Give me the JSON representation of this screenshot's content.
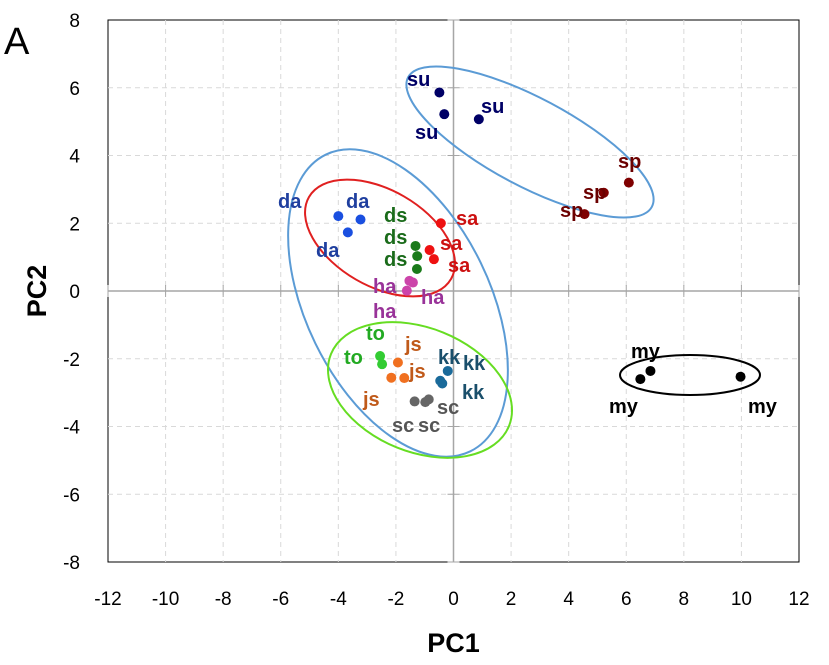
{
  "chart_data": {
    "type": "scatter",
    "panel_label": "A",
    "xlabel": "PC1",
    "ylabel": "PC2",
    "xlim": [
      -12,
      12
    ],
    "ylim": [
      -8,
      8
    ],
    "xticks": [
      "-12",
      "-10",
      "-8",
      "-6",
      "-4",
      "-2",
      "0",
      "2",
      "4",
      "6",
      "8",
      "10",
      "12"
    ],
    "yticks": [
      "8",
      "6",
      "4",
      "2",
      "0",
      "-2",
      "-4",
      "-6",
      "-8"
    ],
    "grid": true,
    "series": [
      {
        "name": "su",
        "color": "#000066",
        "label_color": "#000066",
        "points": [
          [
            -0.49,
            5.86
          ],
          [
            -0.32,
            5.22
          ],
          [
            0.88,
            5.07
          ]
        ]
      },
      {
        "name": "sp",
        "color": "#7f0000",
        "label_color": "#6b0000",
        "points": [
          [
            6.09,
            3.2
          ],
          [
            4.55,
            2.27
          ],
          [
            5.22,
            2.9
          ]
        ]
      },
      {
        "name": "da",
        "color": "#1a4fe0",
        "label_color": "#1f3f9f",
        "points": [
          [
            -4.0,
            2.21
          ],
          [
            -3.23,
            2.11
          ],
          [
            -3.67,
            1.73
          ]
        ]
      },
      {
        "name": "ds",
        "color": "#1a7a1a",
        "label_color": "#1a6b1a",
        "points": [
          [
            -1.32,
            1.33
          ],
          [
            -1.26,
            1.03
          ],
          [
            -1.27,
            0.65
          ]
        ]
      },
      {
        "name": "sa",
        "color": "#ee1111",
        "label_color": "#cc1111",
        "points": [
          [
            -0.44,
            2.0
          ],
          [
            -0.83,
            1.21
          ],
          [
            -0.68,
            0.94
          ]
        ]
      },
      {
        "name": "ha",
        "color": "#cc44aa",
        "label_color": "#993399",
        "points": [
          [
            -1.53,
            0.3
          ],
          [
            -1.41,
            0.25
          ],
          [
            -1.62,
            0.01
          ]
        ]
      },
      {
        "name": "to",
        "color": "#33cc33",
        "label_color": "#22aa22",
        "points": [
          [
            -2.55,
            -1.92
          ],
          [
            -2.48,
            -2.16
          ]
        ]
      },
      {
        "name": "js",
        "color": "#f07020",
        "label_color": "#c05a1a",
        "points": [
          [
            -1.93,
            -2.11
          ],
          [
            -2.16,
            -2.56
          ],
          [
            -1.71,
            -2.57
          ]
        ]
      },
      {
        "name": "kk",
        "color": "#1a6a9a",
        "label_color": "#1a4f6b",
        "points": [
          [
            -0.2,
            -2.36
          ],
          [
            -0.46,
            -2.65
          ],
          [
            -0.39,
            -2.73
          ]
        ]
      },
      {
        "name": "sc",
        "color": "#666666",
        "label_color": "#555555",
        "points": [
          [
            -1.35,
            -3.26
          ],
          [
            -0.98,
            -3.28
          ],
          [
            -0.86,
            -3.2
          ]
        ]
      },
      {
        "name": "my",
        "color": "#000000",
        "label_color": "#000000",
        "points": [
          [
            6.49,
            -2.6
          ],
          [
            6.84,
            -2.36
          ],
          [
            9.97,
            -2.53
          ]
        ]
      }
    ],
    "group_ellipse_colors": [
      "#5b9bd5",
      "#5b9bd5",
      "#e02020",
      "#66dd22",
      "#000000"
    ]
  }
}
